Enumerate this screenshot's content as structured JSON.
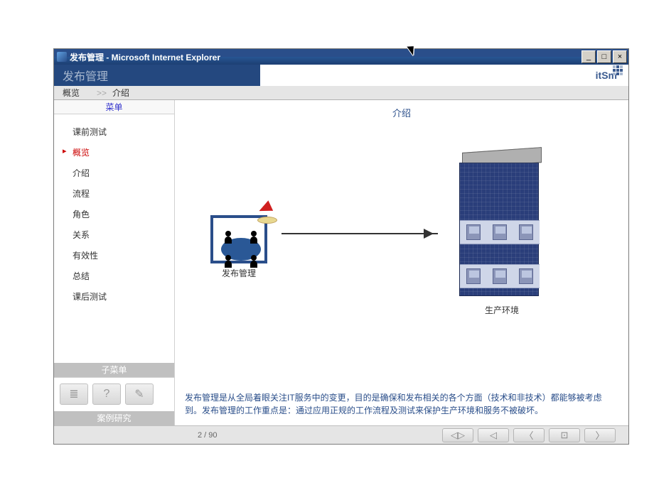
{
  "window": {
    "title": "发布管理 - Microsoft Internet Explorer",
    "min": "_",
    "max": "□",
    "close": "×"
  },
  "app": {
    "header_title": "发布管理",
    "logo_text": "itSm"
  },
  "breadcrumb": {
    "root": "概览",
    "sep": ">>",
    "current": "介绍"
  },
  "sidebar": {
    "menu_header": "菜单",
    "items": [
      {
        "label": "课前测试",
        "active": false
      },
      {
        "label": "概览",
        "active": true
      },
      {
        "label": "介绍",
        "active": false
      },
      {
        "label": "流程",
        "active": false
      },
      {
        "label": "角色",
        "active": false
      },
      {
        "label": "关系",
        "active": false
      },
      {
        "label": "有效性",
        "active": false
      },
      {
        "label": "总结",
        "active": false
      },
      {
        "label": "课后测试",
        "active": false
      }
    ],
    "submenu_header": "子菜单",
    "toolbar_icons": [
      "≣",
      "?",
      "✎"
    ],
    "case_study": "案例研究"
  },
  "content": {
    "title": "介绍",
    "release_label": "发布管理",
    "prod_label": "生产环境",
    "description": "发布管理是从全局着眼关注IT服务中的变更，目的是确保和发布相关的各个方面（技术和非技术）都能够被考虑到。发布管理的工作重点是：通过应用正规的工作流程及测试来保护生产环境和服务不被破坏。"
  },
  "footer": {
    "page": "2  /  90",
    "nav_icons": [
      "◁▷",
      "◁",
      "〈",
      "⊡",
      "〉"
    ]
  },
  "colors": {
    "header_bg": "#24487f",
    "accent": "#2a4e8a",
    "active_menu": "#cc0000",
    "grey_bar": "#c0c0c0"
  }
}
